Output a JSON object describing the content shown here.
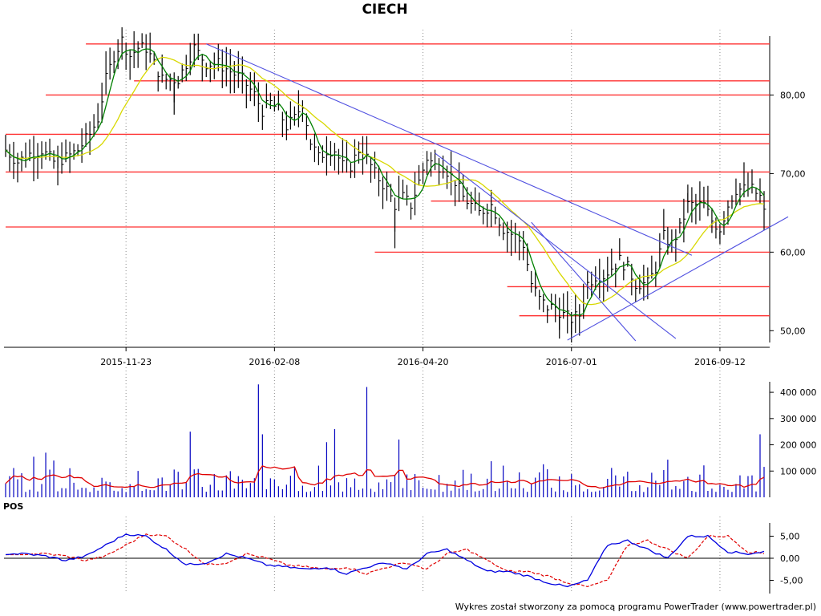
{
  "chart_data": [
    {
      "type": "line",
      "title": "CIECH",
      "x_ticks": [
        "2015-11-23",
        "2016-02-08",
        "2016-04-20",
        "2016-07-01",
        "2016-09-12"
      ],
      "y_ticks": [
        "50,00",
        "60,00",
        "70,00",
        "80,00"
      ],
      "y_tick_values": [
        50,
        60,
        70,
        80
      ],
      "ylim": [
        48.5,
        87.5
      ],
      "n_bars": 190,
      "x_tick_bars": [
        30,
        67,
        104,
        141,
        178
      ],
      "price_anchors": [
        [
          0,
          73
        ],
        [
          3,
          71.5
        ],
        [
          6,
          72.5
        ],
        [
          9,
          73
        ],
        [
          12,
          71.5
        ],
        [
          15,
          72
        ],
        [
          18,
          73
        ],
        [
          21,
          75
        ],
        [
          23,
          77
        ],
        [
          25,
          82
        ],
        [
          27,
          85
        ],
        [
          29,
          87
        ],
        [
          31,
          85
        ],
        [
          33,
          86
        ],
        [
          35,
          86
        ],
        [
          37,
          84
        ],
        [
          39,
          82
        ],
        [
          41,
          82
        ],
        [
          43,
          82
        ],
        [
          45,
          84
        ],
        [
          47,
          86
        ],
        [
          50,
          84
        ],
        [
          53,
          84
        ],
        [
          56,
          83
        ],
        [
          59,
          82
        ],
        [
          62,
          80
        ],
        [
          64,
          78
        ],
        [
          66,
          79
        ],
        [
          68,
          78
        ],
        [
          70,
          76
        ],
        [
          72,
          77
        ],
        [
          74,
          79
        ],
        [
          76,
          74
        ],
        [
          78,
          72
        ],
        [
          80,
          73
        ],
        [
          82,
          73
        ],
        [
          84,
          71
        ],
        [
          86,
          71
        ],
        [
          88,
          73
        ],
        [
          90,
          72
        ],
        [
          92,
          70
        ],
        [
          95,
          68
        ],
        [
          97,
          66
        ],
        [
          99,
          67
        ],
        [
          101,
          66
        ],
        [
          103,
          69
        ],
        [
          105,
          72
        ],
        [
          107,
          71
        ],
        [
          109,
          71
        ],
        [
          112,
          69
        ],
        [
          114,
          67
        ],
        [
          116,
          66
        ],
        [
          118,
          65
        ],
        [
          121,
          66
        ],
        [
          124,
          63
        ],
        [
          127,
          62
        ],
        [
          129,
          61
        ],
        [
          131,
          56
        ],
        [
          133,
          54
        ],
        [
          135,
          53
        ],
        [
          137,
          53
        ],
        [
          139,
          52
        ],
        [
          141,
          51.5
        ],
        [
          143,
          52
        ],
        [
          145,
          56
        ],
        [
          147,
          57
        ],
        [
          149,
          57
        ],
        [
          151,
          58
        ],
        [
          153,
          59
        ],
        [
          155,
          58
        ],
        [
          157,
          56
        ],
        [
          160,
          56
        ],
        [
          162,
          58
        ],
        [
          164,
          62
        ],
        [
          166,
          61
        ],
        [
          168,
          63
        ],
        [
          170,
          66
        ],
        [
          172,
          66
        ],
        [
          174,
          66
        ],
        [
          176,
          64
        ],
        [
          178,
          63
        ],
        [
          180,
          66
        ],
        [
          182,
          68
        ],
        [
          184,
          68
        ],
        [
          186,
          68
        ],
        [
          188,
          67
        ],
        [
          189,
          65
        ]
      ],
      "series": [
        {
          "name": "",
          "role": "close",
          "color": "#000000"
        },
        {
          "name": "",
          "role": "short-ma",
          "color": "#008000"
        },
        {
          "name": "",
          "role": "long-ma",
          "color": "#d8d800"
        }
      ],
      "support_resistance": [
        {
          "level": 86.5,
          "from_bar": 20
        },
        {
          "level": 81.8,
          "from_bar": 32
        },
        {
          "level": 80.0,
          "from_bar": 10
        },
        {
          "level": 75.0,
          "from_bar": 0
        },
        {
          "level": 73.8,
          "from_bar": 88
        },
        {
          "level": 70.2,
          "from_bar": 0
        },
        {
          "level": 66.5,
          "from_bar": 106
        },
        {
          "level": 63.2,
          "from_bar": 0
        },
        {
          "level": 60.0,
          "from_bar": 92
        },
        {
          "level": 55.6,
          "from_bar": 125
        },
        {
          "level": 51.9,
          "from_bar": 128
        }
      ],
      "trendlines": [
        {
          "from": [
            50,
            86.5
          ],
          "to": [
            171,
            59.6
          ]
        },
        {
          "from": [
            107,
            72.6
          ],
          "to": [
            167,
            49.0
          ]
        },
        {
          "from": [
            131,
            63.8
          ],
          "to": [
            157,
            48.7
          ]
        },
        {
          "from": [
            140,
            48.8
          ],
          "to": [
            195,
            64.5
          ]
        }
      ],
      "lr_color": "#ff3030",
      "trend_color": "#5050e0"
    },
    {
      "type": "bar",
      "y_ticks": [
        "100 000",
        "200 000",
        "300 000",
        "400 000"
      ],
      "y_tick_values": [
        100000,
        200000,
        300000,
        400000
      ],
      "ylim": [
        0,
        440000
      ],
      "bar_color": "#0000c0",
      "avg_color": "#e00000",
      "spikes": [
        [
          10,
          170000
        ],
        [
          12,
          140000
        ],
        [
          46,
          250000
        ],
        [
          63,
          430000
        ],
        [
          64,
          240000
        ],
        [
          80,
          210000
        ],
        [
          82,
          260000
        ],
        [
          90,
          420000
        ],
        [
          98,
          220000
        ],
        [
          188,
          240000
        ]
      ]
    },
    {
      "type": "line",
      "label": "POS",
      "y_ticks": [
        "5,00",
        "0,00",
        "-5,00"
      ],
      "y_tick_values": [
        5,
        0,
        -5
      ],
      "ylim": [
        -8,
        8
      ],
      "pos_anchors": [
        [
          0,
          1
        ],
        [
          5,
          1
        ],
        [
          10,
          0.5
        ],
        [
          15,
          -0.5
        ],
        [
          20,
          0.5
        ],
        [
          25,
          3
        ],
        [
          30,
          5.5
        ],
        [
          35,
          5
        ],
        [
          40,
          2
        ],
        [
          45,
          -1.5
        ],
        [
          50,
          -1
        ],
        [
          55,
          1
        ],
        [
          60,
          0
        ],
        [
          65,
          -1.5
        ],
        [
          70,
          -2
        ],
        [
          75,
          -2.5
        ],
        [
          80,
          -2
        ],
        [
          85,
          -3.5
        ],
        [
          90,
          -2
        ],
        [
          95,
          -1
        ],
        [
          100,
          -2.5
        ],
        [
          105,
          1
        ],
        [
          110,
          2
        ],
        [
          115,
          -0.5
        ],
        [
          120,
          -3
        ],
        [
          125,
          -3
        ],
        [
          130,
          -4
        ],
        [
          135,
          -5.5
        ],
        [
          140,
          -6.5
        ],
        [
          145,
          -5
        ],
        [
          150,
          3
        ],
        [
          155,
          4
        ],
        [
          160,
          2
        ],
        [
          165,
          0
        ],
        [
          170,
          5
        ],
        [
          175,
          5
        ],
        [
          180,
          1.5
        ],
        [
          185,
          1
        ],
        [
          189,
          1.5
        ]
      ],
      "series": [
        {
          "name": "",
          "role": "pos",
          "color": "#0000e0"
        },
        {
          "name": "",
          "role": "signal",
          "color": "#e00000"
        }
      ]
    }
  ],
  "labels": {
    "title": "CIECH",
    "pos": "POS",
    "credit": "Wykres został stworzony za pomocą programu PowerTrader (www.powertrader.pl)"
  }
}
